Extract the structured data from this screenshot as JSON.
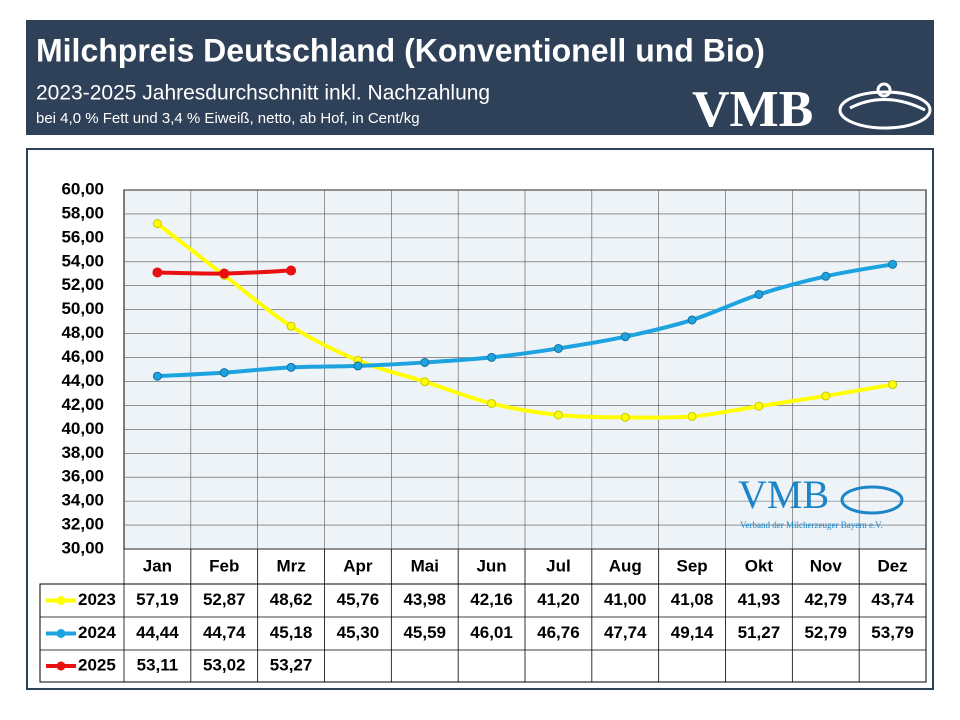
{
  "header": {
    "logo": "VMB"
  },
  "watermark": {
    "logo": "VMB",
    "text": "Verband der Milcherzeuger Bayern e.V."
  },
  "chart_data": {
    "type": "line",
    "title": "Milchpreis Deutschland (Konventionell und Bio)",
    "subtitle": "2023-2025 Jahresdurchschnitt inkl. Nachzahlung",
    "note": "bei 4,0 % Fett und 3,4 % Eiweiß, netto, ab Hof, in Cent/kg",
    "categories": [
      "Jan",
      "Feb",
      "Mrz",
      "Apr",
      "Mai",
      "Jun",
      "Jul",
      "Aug",
      "Sep",
      "Okt",
      "Nov",
      "Dez"
    ],
    "series": [
      {
        "name": "2023",
        "color": "#ffff00",
        "values": [
          57.19,
          52.87,
          48.62,
          45.76,
          43.98,
          42.16,
          41.2,
          41.0,
          41.08,
          41.93,
          42.79,
          43.74
        ],
        "value_labels": [
          "57,19",
          "52,87",
          "48,62",
          "45,76",
          "43,98",
          "42,16",
          "41,20",
          "41,00",
          "41,08",
          "41,93",
          "42,79",
          "43,74"
        ]
      },
      {
        "name": "2024",
        "color": "#1ca3e0",
        "values": [
          44.44,
          44.74,
          45.18,
          45.3,
          45.59,
          46.01,
          46.76,
          47.74,
          49.14,
          51.27,
          52.79,
          53.79
        ],
        "value_labels": [
          "44,44",
          "44,74",
          "45,18",
          "45,30",
          "45,59",
          "46,01",
          "46,76",
          "47,74",
          "49,14",
          "51,27",
          "52,79",
          "53,79"
        ]
      },
      {
        "name": "2025",
        "color": "#e81010",
        "values": [
          53.11,
          53.02,
          53.27,
          null,
          null,
          null,
          null,
          null,
          null,
          null,
          null,
          null
        ],
        "value_labels": [
          "53,11",
          "53,02",
          "53,27",
          null,
          null,
          null,
          null,
          null,
          null,
          null,
          null,
          null
        ]
      }
    ],
    "ylim": [
      30,
      60
    ],
    "yticks": [
      {
        "value": 30,
        "label": "30,00"
      },
      {
        "value": 32,
        "label": "32,00"
      },
      {
        "value": 34,
        "label": "34,00"
      },
      {
        "value": 36,
        "label": "36,00"
      },
      {
        "value": 38,
        "label": "38,00"
      },
      {
        "value": 40,
        "label": "40,00"
      },
      {
        "value": 42,
        "label": "42,00"
      },
      {
        "value": 44,
        "label": "44,00"
      },
      {
        "value": 46,
        "label": "46,00"
      },
      {
        "value": 48,
        "label": "48,00"
      },
      {
        "value": 50,
        "label": "50,00"
      },
      {
        "value": 52,
        "label": "52,00"
      },
      {
        "value": 54,
        "label": "54,00"
      },
      {
        "value": 56,
        "label": "56,00"
      },
      {
        "value": 58,
        "label": "58,00"
      },
      {
        "value": 60,
        "label": "60,00"
      }
    ],
    "grid": true
  }
}
